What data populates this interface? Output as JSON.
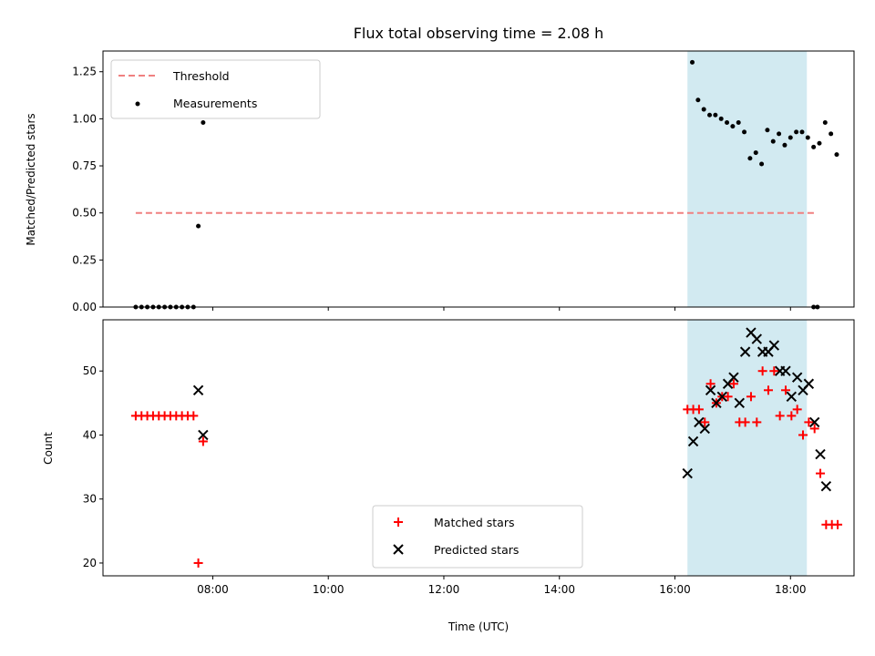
{
  "chart_data": [
    {
      "type": "scatter",
      "title": "Flux total observing time = 2.08 h",
      "xlabel": "",
      "ylabel": "Matched/Predicted stars",
      "ylim": [
        0,
        1.36
      ],
      "xlim": [
        "06:06",
        "19:06"
      ],
      "yticks": [
        "0.00",
        "0.25",
        "0.50",
        "0.75",
        "1.00",
        "1.25"
      ],
      "legend_position": "top-left",
      "grid": false,
      "shaded_interval": {
        "start": "16:13",
        "end": "18:17",
        "color": "#add8e6"
      },
      "threshold": {
        "name": "Threshold",
        "value": 0.5,
        "x_start": "06:40",
        "x_end": "18:27",
        "color": "#f08080"
      },
      "series": [
        {
          "name": "Measurements",
          "color": "#000000",
          "points": [
            [
              "06:40",
              0
            ],
            [
              "06:46",
              0
            ],
            [
              "06:52",
              0
            ],
            [
              "06:58",
              0
            ],
            [
              "07:04",
              0
            ],
            [
              "07:10",
              0
            ],
            [
              "07:16",
              0
            ],
            [
              "07:22",
              0
            ],
            [
              "07:28",
              0
            ],
            [
              "07:34",
              0
            ],
            [
              "07:40",
              0
            ],
            [
              "07:45",
              0.43
            ],
            [
              "07:50",
              0.98
            ],
            [
              "16:18",
              1.3
            ],
            [
              "16:24",
              1.1
            ],
            [
              "16:30",
              1.05
            ],
            [
              "16:36",
              1.02
            ],
            [
              "16:42",
              1.02
            ],
            [
              "16:48",
              1.0
            ],
            [
              "16:54",
              0.98
            ],
            [
              "17:00",
              0.96
            ],
            [
              "17:06",
              0.98
            ],
            [
              "17:12",
              0.93
            ],
            [
              "17:18",
              0.79
            ],
            [
              "17:24",
              0.82
            ],
            [
              "17:30",
              0.76
            ],
            [
              "17:36",
              0.94
            ],
            [
              "17:42",
              0.88
            ],
            [
              "17:48",
              0.92
            ],
            [
              "17:54",
              0.86
            ],
            [
              "18:00",
              0.9
            ],
            [
              "18:06",
              0.93
            ],
            [
              "18:12",
              0.93
            ],
            [
              "18:18",
              0.9
            ],
            [
              "18:24",
              0.85
            ],
            [
              "18:30",
              0.87
            ],
            [
              "18:36",
              0.98
            ],
            [
              "18:42",
              0.92
            ],
            [
              "18:48",
              0.81
            ],
            [
              "18:24",
              0
            ],
            [
              "18:28",
              0
            ]
          ]
        }
      ]
    },
    {
      "type": "scatter",
      "title": "",
      "xlabel": "Time (UTC)",
      "ylabel": "Count",
      "ylim": [
        18,
        58
      ],
      "xlim": [
        "06:06",
        "19:06"
      ],
      "xticks": [
        "08:00",
        "10:00",
        "12:00",
        "14:00",
        "16:00",
        "18:00"
      ],
      "yticks": [
        "20",
        "30",
        "40",
        "50"
      ],
      "legend_position": "bottom-center",
      "grid": false,
      "shaded_interval": {
        "start": "16:13",
        "end": "18:17",
        "color": "#add8e6"
      },
      "series": [
        {
          "name": "Matched stars",
          "color": "#ff0000",
          "marker": "+",
          "points": [
            [
              "06:40",
              43
            ],
            [
              "06:46",
              43
            ],
            [
              "06:52",
              43
            ],
            [
              "06:58",
              43
            ],
            [
              "07:04",
              43
            ],
            [
              "07:10",
              43
            ],
            [
              "07:16",
              43
            ],
            [
              "07:22",
              43
            ],
            [
              "07:28",
              43
            ],
            [
              "07:34",
              43
            ],
            [
              "07:40",
              43
            ],
            [
              "07:45",
              20
            ],
            [
              "07:50",
              39
            ],
            [
              "16:13",
              44
            ],
            [
              "16:19",
              44
            ],
            [
              "16:25",
              44
            ],
            [
              "16:31",
              42
            ],
            [
              "16:37",
              48
            ],
            [
              "16:43",
              45
            ],
            [
              "16:49",
              46
            ],
            [
              "16:55",
              46
            ],
            [
              "17:01",
              48
            ],
            [
              "17:07",
              42
            ],
            [
              "17:13",
              42
            ],
            [
              "17:19",
              46
            ],
            [
              "17:25",
              42
            ],
            [
              "17:31",
              50
            ],
            [
              "17:37",
              47
            ],
            [
              "17:43",
              50
            ],
            [
              "17:49",
              43
            ],
            [
              "17:55",
              47
            ],
            [
              "18:01",
              43
            ],
            [
              "18:07",
              44
            ],
            [
              "18:13",
              40
            ],
            [
              "18:19",
              42
            ],
            [
              "18:25",
              41
            ],
            [
              "18:31",
              34
            ],
            [
              "18:37",
              26
            ],
            [
              "18:43",
              26
            ],
            [
              "18:49",
              26
            ]
          ]
        },
        {
          "name": "Predicted stars",
          "color": "#000000",
          "marker": "x",
          "points": [
            [
              "07:45",
              47
            ],
            [
              "07:50",
              40
            ],
            [
              "16:13",
              34
            ],
            [
              "16:19",
              39
            ],
            [
              "16:25",
              42
            ],
            [
              "16:31",
              41
            ],
            [
              "16:37",
              47
            ],
            [
              "16:43",
              45
            ],
            [
              "16:49",
              46
            ],
            [
              "16:55",
              48
            ],
            [
              "17:01",
              49
            ],
            [
              "17:07",
              45
            ],
            [
              "17:13",
              53
            ],
            [
              "17:19",
              56
            ],
            [
              "17:25",
              55
            ],
            [
              "17:31",
              53
            ],
            [
              "17:37",
              53
            ],
            [
              "17:43",
              54
            ],
            [
              "17:49",
              50
            ],
            [
              "17:55",
              50
            ],
            [
              "18:01",
              46
            ],
            [
              "18:07",
              49
            ],
            [
              "18:13",
              47
            ],
            [
              "18:19",
              48
            ],
            [
              "18:25",
              42
            ],
            [
              "18:31",
              37
            ],
            [
              "18:37",
              32
            ]
          ]
        }
      ]
    }
  ]
}
